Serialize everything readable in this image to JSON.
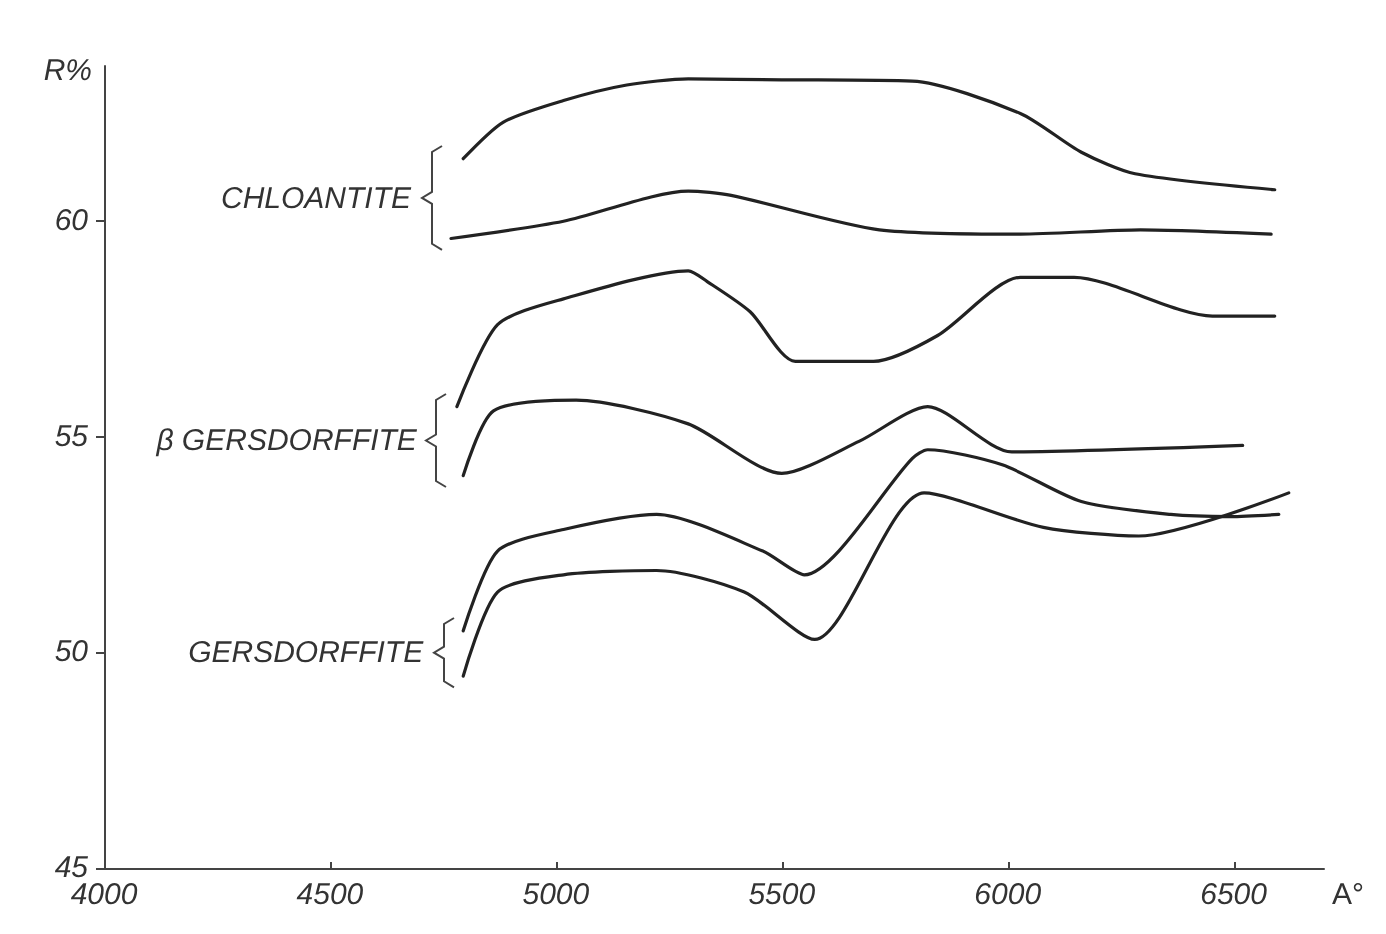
{
  "chart_data": {
    "type": "line",
    "xlabel": "A°",
    "ylabel": "R%",
    "xlim": [
      4000,
      6700
    ],
    "ylim": [
      45,
      63.6
    ],
    "xticks": [
      4000,
      4500,
      5000,
      5500,
      6000,
      6500
    ],
    "yticks": [
      45,
      50,
      55,
      60
    ],
    "grid": false,
    "series": [
      {
        "color": "#222222",
        "x": [
          4795,
          4884,
          5017,
          5157,
          5293,
          5500,
          5789,
          6028,
          6163,
          6282,
          6591
        ],
        "values": [
          61.45,
          62.3,
          62.8,
          63.16,
          63.3,
          63.28,
          63.25,
          62.5,
          61.6,
          61.1,
          60.73
        ]
      },
      {
        "color": "#222222",
        "x": [
          4768,
          5017,
          5293,
          5388,
          5716,
          6028,
          6294,
          6583
        ],
        "values": [
          59.6,
          60.0,
          60.7,
          60.6,
          59.8,
          59.7,
          59.8,
          59.7
        ]
      },
      {
        "color": "#222222",
        "x": [
          4781,
          4871,
          5017,
          5293,
          5335,
          5430,
          5530,
          5703,
          5845,
          6028,
          6147,
          6453,
          6591
        ],
        "values": [
          55.7,
          57.6,
          58.2,
          58.85,
          58.6,
          57.9,
          56.75,
          56.75,
          57.35,
          58.7,
          58.7,
          57.8,
          57.8
        ]
      },
      {
        "color": "#222222",
        "x": [
          4795,
          4862,
          5045,
          5293,
          5500,
          5672,
          5823,
          6009,
          6520
        ],
        "values": [
          54.1,
          55.6,
          55.85,
          55.3,
          54.15,
          54.9,
          55.7,
          54.65,
          54.8
        ]
      },
      {
        "color": "#222222",
        "x": [
          4795,
          4871,
          5017,
          5223,
          5458,
          5550,
          5789,
          5823,
          5988,
          6163,
          6361,
          6493,
          6600
        ],
        "values": [
          50.5,
          52.35,
          52.85,
          53.2,
          52.35,
          51.8,
          54.5,
          54.7,
          54.35,
          53.5,
          53.2,
          53.15,
          53.2
        ]
      },
      {
        "color": "#222222",
        "x": [
          4795,
          4871,
          5017,
          5223,
          5417,
          5573,
          5815,
          6079,
          6290,
          6622
        ],
        "values": [
          49.45,
          51.4,
          51.8,
          51.9,
          51.4,
          50.3,
          53.7,
          52.9,
          52.7,
          53.7
        ]
      }
    ],
    "annotations": [
      "CHLOANTITE",
      "β GERSDORFFITE",
      "GERSDORFFITE"
    ]
  }
}
